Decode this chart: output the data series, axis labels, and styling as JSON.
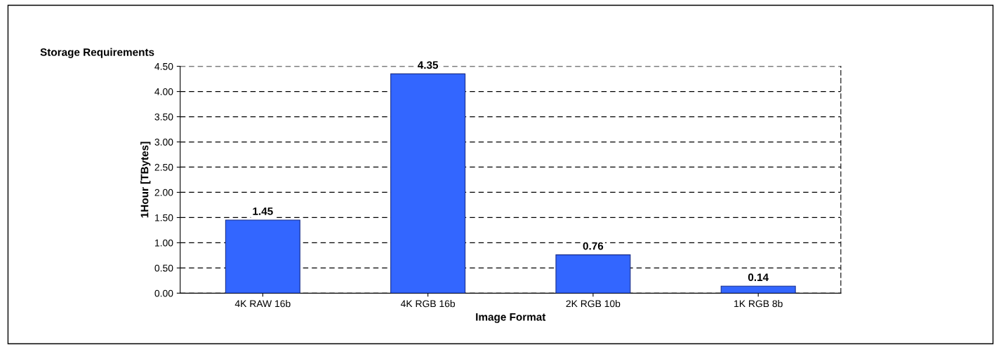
{
  "chart_data": {
    "type": "bar",
    "title": "Storage Requirements",
    "xlabel": "Image Format",
    "ylabel": "1Hour [TBytes]",
    "categories": [
      "4K RAW 16b",
      "4K RGB 16b",
      "2K RGB 10b",
      "1K RGB 8b"
    ],
    "values": [
      1.45,
      4.35,
      0.76,
      0.14
    ],
    "color": "#3366ff",
    "ylim": [
      0,
      4.5
    ],
    "yticks": [
      {
        "value": 0,
        "label": "0.00"
      },
      {
        "value": 0.5,
        "label": "0.50"
      },
      {
        "value": 1,
        "label": "1.00"
      },
      {
        "value": 1.5,
        "label": "1.50"
      },
      {
        "value": 2,
        "label": "2.00"
      },
      {
        "value": 2.5,
        "label": "2.50"
      },
      {
        "value": 3,
        "label": "3.00"
      },
      {
        "value": 3.5,
        "label": "3.50"
      },
      {
        "value": 4,
        "label": "4.00"
      },
      {
        "value": 4.5,
        "label": "4.50"
      }
    ],
    "grid": "y",
    "data_labels": true,
    "legend": false
  }
}
